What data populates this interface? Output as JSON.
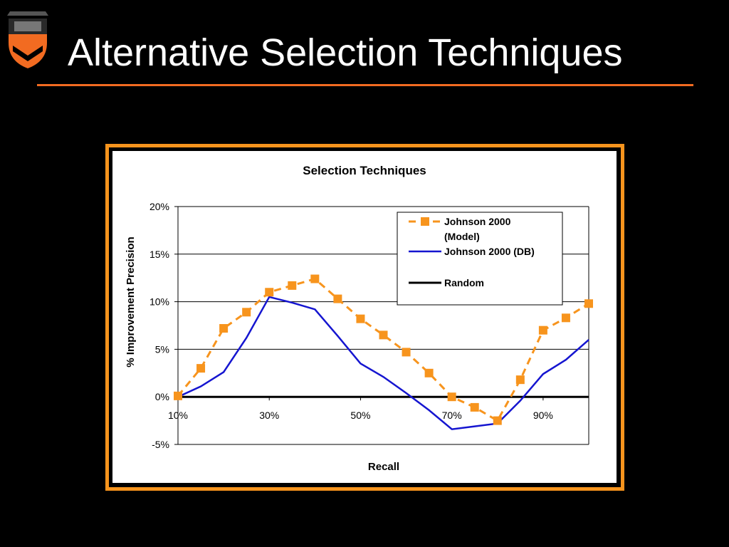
{
  "slide": {
    "title": "Alternative Selection Techniques"
  },
  "colors": {
    "accent_orange": "#f26b21",
    "model_series": "#f7941d",
    "db_series": "#1515d0",
    "random_series": "#000000",
    "background": "#000000"
  },
  "logo": {
    "icon": "princeton-shield-icon"
  },
  "chart_data": {
    "type": "line",
    "title": "Selection Techniques",
    "xlabel": "Recall",
    "ylabel": "% Improvement Precision",
    "x": [
      10,
      15,
      20,
      25,
      30,
      35,
      40,
      45,
      50,
      55,
      60,
      65,
      70,
      75,
      80,
      85,
      90,
      95,
      100
    ],
    "x_tick_values": [
      10,
      30,
      50,
      70,
      90
    ],
    "x_tick_labels": [
      "10%",
      "30%",
      "50%",
      "70%",
      "90%"
    ],
    "xlim": [
      10,
      100
    ],
    "ylim": [
      -5,
      20
    ],
    "y_tick_values": [
      -5,
      0,
      5,
      10,
      15,
      20
    ],
    "y_tick_labels": [
      "-5%",
      "0%",
      "5%",
      "10%",
      "15%",
      "20%"
    ],
    "grid": true,
    "legend_position": "top-right",
    "series": [
      {
        "name": "Johnson 2000 (Model)",
        "legend_lines": [
          "Johnson 2000",
          "(Model)"
        ],
        "style": "dashed-square",
        "values": [
          0.1,
          3.0,
          7.2,
          8.9,
          11.0,
          11.7,
          12.4,
          10.3,
          8.2,
          6.5,
          4.7,
          2.5,
          0.0,
          -1.1,
          -2.5,
          1.8,
          7.0,
          8.3,
          9.8
        ]
      },
      {
        "name": "Johnson 2000 (DB)",
        "legend_lines": [
          "Johnson 2000 (DB)"
        ],
        "style": "solid",
        "values": [
          0.0,
          1.1,
          2.6,
          6.2,
          10.5,
          9.9,
          9.2,
          6.4,
          3.5,
          2.1,
          0.4,
          -1.4,
          -3.4,
          -3.1,
          -2.8,
          -0.4,
          2.4,
          3.9,
          6.0
        ]
      },
      {
        "name": "Random",
        "legend_lines": [
          "Random"
        ],
        "style": "solid-thick",
        "values": [
          0,
          0,
          0,
          0,
          0,
          0,
          0,
          0,
          0,
          0,
          0,
          0,
          0,
          0,
          0,
          0,
          0,
          0,
          0
        ]
      }
    ]
  }
}
